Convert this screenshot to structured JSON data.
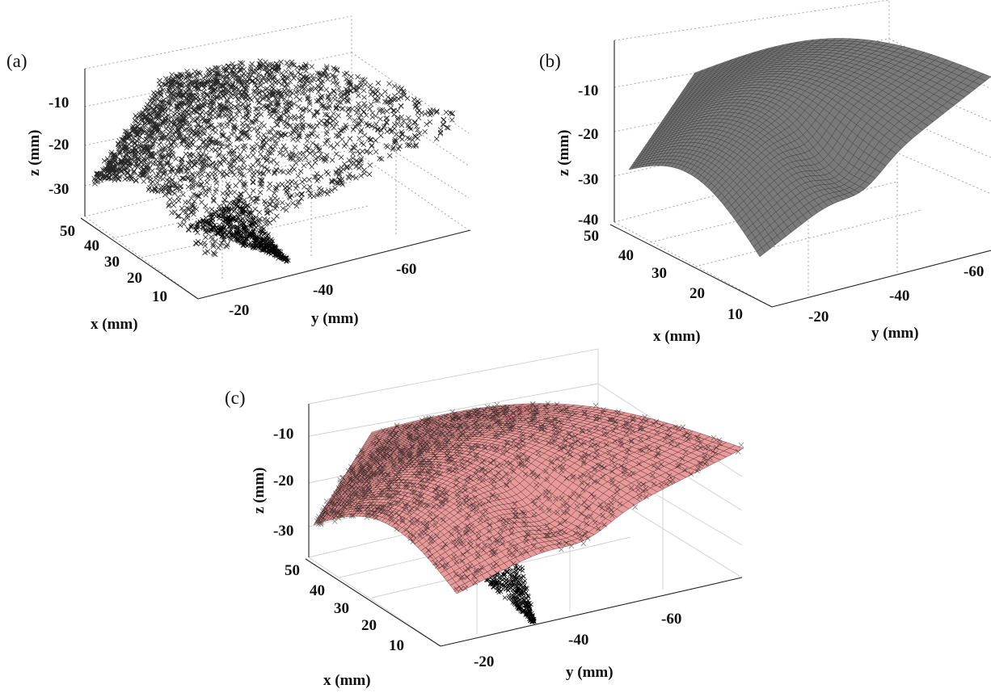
{
  "chart_data": [
    {
      "panel": "(a)",
      "type": "scatter",
      "marker": "x",
      "marker_color": "#000000",
      "grid": "dotted",
      "xlabel": "x (mm)",
      "ylabel": "y (mm)",
      "zlabel": "z (mm)",
      "x_ticks": [
        "10",
        "20",
        "30",
        "40",
        "50"
      ],
      "y_ticks": [
        "-20",
        "-40",
        "-60"
      ],
      "z_ticks": [
        "-10",
        "-20",
        "-30"
      ],
      "xlim": [
        5,
        52
      ],
      "ylim": [
        -10,
        -80
      ],
      "zlim": [
        -35,
        -3
      ],
      "point_count": 2600
    },
    {
      "panel": "(b)",
      "type": "surface",
      "face_color": "#7a7a7a",
      "edge_color": "#2a2a2a",
      "grid": "dotted",
      "xlabel": "x (mm)",
      "ylabel": "y (mm)",
      "zlabel": "z (mm)",
      "x_ticks": [
        "10",
        "20",
        "30",
        "40",
        "50"
      ],
      "y_ticks": [
        "-20",
        "-40",
        "-60"
      ],
      "z_ticks": [
        "-10",
        "-20",
        "-30",
        "-40"
      ],
      "xlim": [
        5,
        52
      ],
      "ylim": [
        -10,
        -80
      ],
      "zlim": [
        -40,
        -3
      ]
    },
    {
      "panel": "(c)",
      "type": "surface+scatter",
      "face_color": "#e89a9a",
      "edge_color": "#3a1a1a",
      "marker": "x",
      "marker_color": "#000000",
      "grid": "solid",
      "xlabel": "x (mm)",
      "ylabel": "y (mm)",
      "zlabel": "z (mm)",
      "x_ticks": [
        "10",
        "20",
        "30",
        "40",
        "50"
      ],
      "y_ticks": [
        "-20",
        "-40",
        "-60"
      ],
      "z_ticks": [
        "-10",
        "-20",
        "-30"
      ],
      "xlim": [
        5,
        52
      ],
      "ylim": [
        -10,
        -80
      ],
      "zlim": [
        -35,
        -3
      ]
    }
  ]
}
